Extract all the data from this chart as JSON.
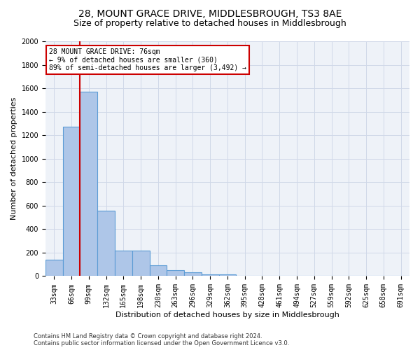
{
  "title": "28, MOUNT GRACE DRIVE, MIDDLESBROUGH, TS3 8AE",
  "subtitle": "Size of property relative to detached houses in Middlesbrough",
  "xlabel": "Distribution of detached houses by size in Middlesbrough",
  "ylabel": "Number of detached properties",
  "footer_line1": "Contains HM Land Registry data © Crown copyright and database right 2024.",
  "footer_line2": "Contains public sector information licensed under the Open Government Licence v3.0.",
  "bar_labels": [
    "33sqm",
    "66sqm",
    "99sqm",
    "132sqm",
    "165sqm",
    "198sqm",
    "230sqm",
    "263sqm",
    "296sqm",
    "329sqm",
    "362sqm",
    "395sqm",
    "428sqm",
    "461sqm",
    "494sqm",
    "527sqm",
    "559sqm",
    "592sqm",
    "625sqm",
    "658sqm",
    "691sqm"
  ],
  "bar_values": [
    140,
    1270,
    1570,
    560,
    220,
    220,
    95,
    50,
    30,
    15,
    15,
    0,
    0,
    0,
    0,
    0,
    0,
    0,
    0,
    0,
    0
  ],
  "bar_color": "#aec6e8",
  "bar_edge_color": "#5b9bd5",
  "annotation_text": "28 MOUNT GRACE DRIVE: 76sqm\n← 9% of detached houses are smaller (360)\n89% of semi-detached houses are larger (3,492) →",
  "annotation_box_color": "#ffffff",
  "annotation_box_edge_color": "#cc0000",
  "vline_x": 1.5,
  "vline_color": "#cc0000",
  "ylim": [
    0,
    2000
  ],
  "yticks": [
    0,
    200,
    400,
    600,
    800,
    1000,
    1200,
    1400,
    1600,
    1800,
    2000
  ],
  "grid_color": "#d0d8e8",
  "bg_color": "#eef2f8",
  "title_fontsize": 10,
  "subtitle_fontsize": 9,
  "axis_fontsize": 8,
  "tick_fontsize": 7,
  "annotation_fontsize": 7,
  "footer_fontsize": 6
}
